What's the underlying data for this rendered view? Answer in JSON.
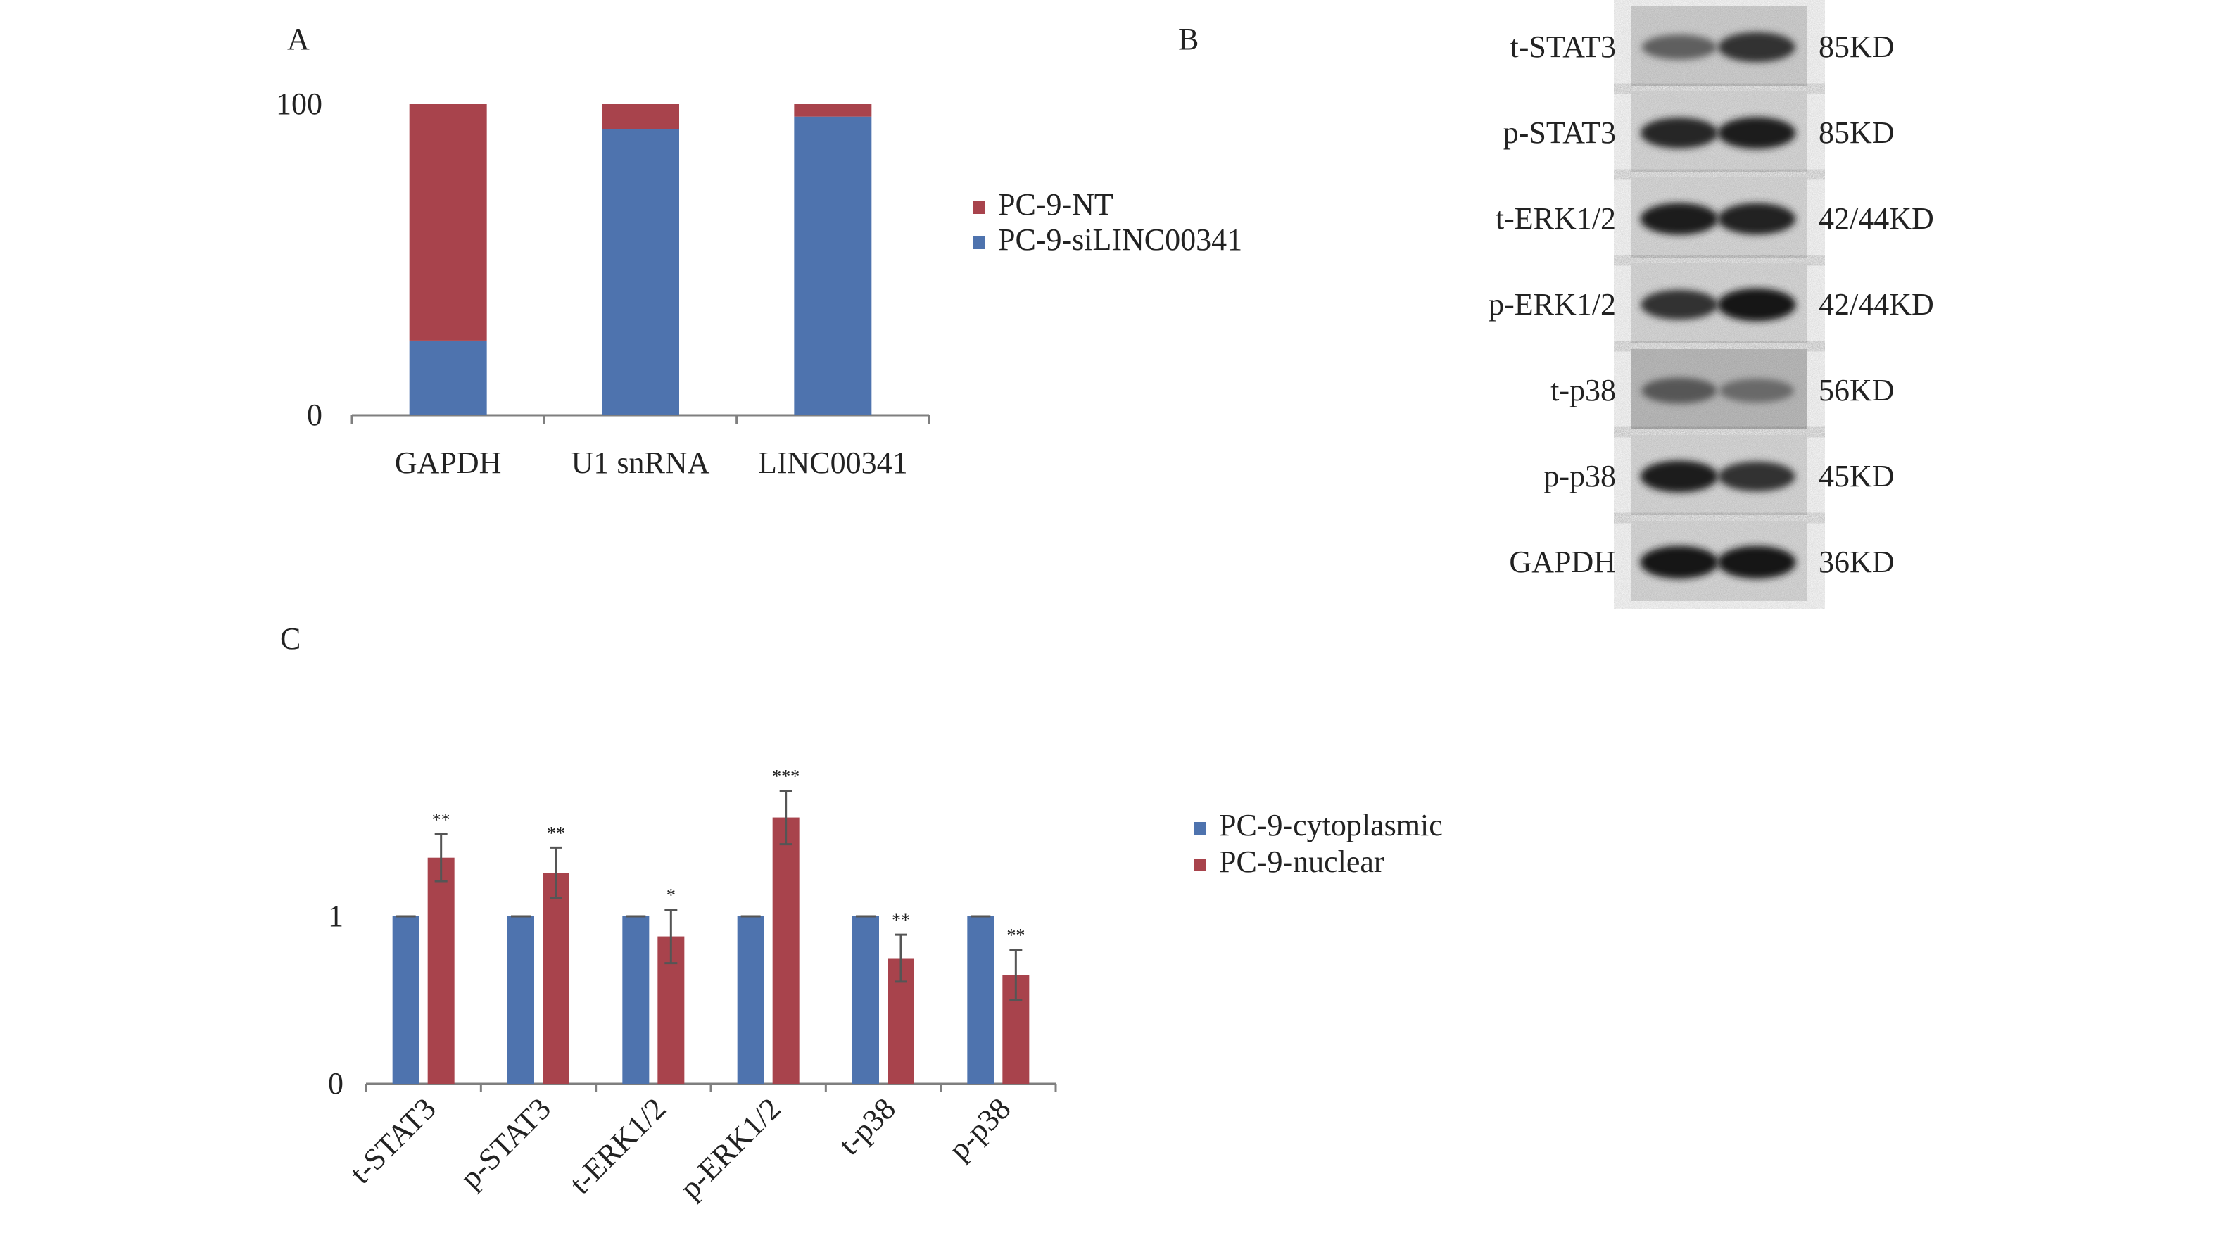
{
  "colors": {
    "blue": "#4E73AE",
    "red": "#A8434C",
    "axis": "#7F7F7F",
    "text": "#222222"
  },
  "panel_a": {
    "label": "A"
  },
  "panel_b": {
    "label": "B"
  },
  "panel_c": {
    "label": "C"
  },
  "chart_data": [
    {
      "type": "bar",
      "stacked": true,
      "panel": "A",
      "title": "",
      "xlabel": "",
      "ylabel": "",
      "categories": [
        "GAPDH",
        "U1 snRNA",
        "LINC00341"
      ],
      "series": [
        {
          "name": "PC-9-siLINC00341",
          "color": "#4E73AE",
          "values": [
            24,
            92,
            96
          ]
        },
        {
          "name": "PC-9-NT",
          "color": "#A8434C",
          "values": [
            76,
            8,
            4
          ]
        }
      ],
      "ylim": [
        0,
        100
      ],
      "yticks": [
        "0",
        "100"
      ],
      "legend": [
        "PC-9-NT",
        "PC-9-siLINC00341"
      ],
      "legend_position": "right"
    },
    {
      "type": "bar",
      "panel": "C",
      "title": "",
      "xlabel": "",
      "ylabel": "",
      "categories": [
        "t-STAT3",
        "p-STAT3",
        "t-ERK1/2",
        "p-ERK1/2",
        "t-p38",
        "p-p38"
      ],
      "series": [
        {
          "name": "PC-9-cytoplasmic",
          "color": "#4E73AE",
          "values": [
            1,
            1,
            1,
            1,
            1,
            1
          ],
          "errors": [
            0,
            0,
            0,
            0,
            0,
            0
          ]
        },
        {
          "name": "PC-9-nuclear",
          "color": "#A8434C",
          "values": [
            1.35,
            1.26,
            0.88,
            1.59,
            0.75,
            0.65
          ],
          "errors": [
            0.14,
            0.15,
            0.16,
            0.16,
            0.14,
            0.15
          ]
        }
      ],
      "significance": [
        "**",
        "**",
        "*",
        "***",
        "**",
        "**"
      ],
      "ylim": [
        0,
        1.75
      ],
      "yticks": [
        "0",
        "1"
      ],
      "legend": [
        "PC-9-cytoplasmic",
        "PC-9-nuclear"
      ],
      "legend_position": "right"
    }
  ],
  "western_blot": {
    "rows": [
      {
        "protein": "t-STAT3",
        "size": "85KD",
        "band_intensity": [
          0.55,
          0.8
        ]
      },
      {
        "protein": "p-STAT3",
        "size": "85KD",
        "band_intensity": [
          0.85,
          0.9
        ]
      },
      {
        "protein": "t-ERK1/2",
        "size": "42/44KD",
        "band_intensity": [
          0.9,
          0.88
        ]
      },
      {
        "protein": "p-ERK1/2",
        "size": "42/44KD",
        "band_intensity": [
          0.8,
          0.95
        ]
      },
      {
        "protein": "t-p38",
        "size": "56KD",
        "band_intensity": [
          0.6,
          0.5
        ]
      },
      {
        "protein": "p-p38",
        "size": "45KD",
        "band_intensity": [
          0.9,
          0.8
        ]
      },
      {
        "protein": "GAPDH",
        "size": "36KD",
        "band_intensity": [
          0.95,
          0.95
        ]
      }
    ]
  }
}
